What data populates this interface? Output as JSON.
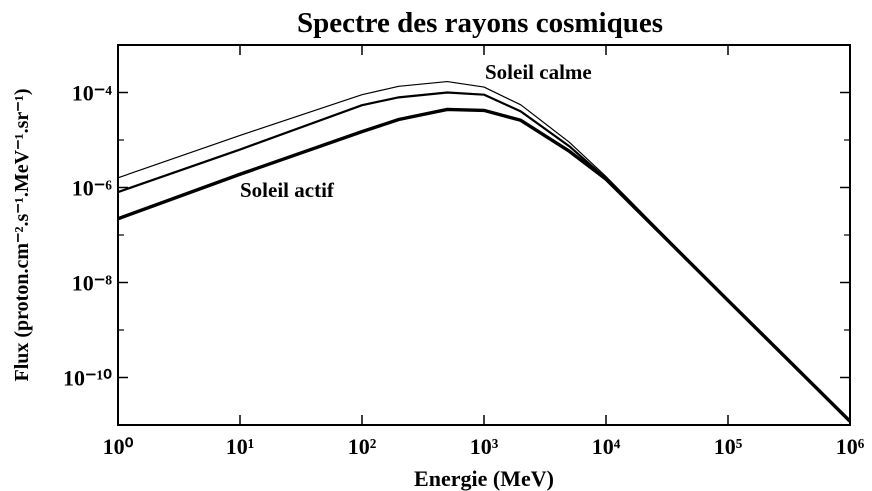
{
  "chart_data": {
    "type": "line",
    "title": "Spectre des rayons cosmiques",
    "x_label": "Energie (MeV)",
    "y_label": "Flux (proton.cm⁻².s⁻¹.MeV⁻¹.sr⁻¹)",
    "log_x": true,
    "log_y": true,
    "x": [
      1,
      10,
      100,
      200,
      500,
      1000,
      2000,
      5000,
      10000,
      100000,
      1000000
    ],
    "series": [
      {
        "color": "#000000",
        "width": 1.2,
        "values": [
          1.6e-06,
          1.25e-05,
          9e-05,
          0.000135,
          0.00017,
          0.00013,
          5.5e-05,
          9e-06,
          1.7e-06,
          4.3e-09,
          1.2e-11
        ]
      },
      {
        "color": "#000000",
        "width": 2.2,
        "values": [
          8e-07,
          6.3e-06,
          5.4e-05,
          7.9e-05,
          0.0001,
          9e-05,
          4e-05,
          7.4e-06,
          1.55e-06,
          4.2e-09,
          1.2e-11
        ]
      },
      {
        "color": "#000000",
        "width": 3.4,
        "values": [
          2.2e-07,
          1.9e-06,
          1.5e-05,
          2.7e-05,
          4.4e-05,
          4.2e-05,
          2.6e-05,
          5.8e-06,
          1.5e-06,
          4.2e-09,
          1.2e-11
        ]
      }
    ],
    "annotations": [
      "Soleil calme",
      "Soleil actif"
    ],
    "xlim": [
      1,
      1000000
    ],
    "ylim": [
      1e-11,
      0.001
    ],
    "xticks": [
      {
        "value": 1,
        "label": "10⁰"
      },
      {
        "value": 10,
        "label": "10¹"
      },
      {
        "value": 100,
        "label": "10²"
      },
      {
        "value": 1000,
        "label": "10³"
      },
      {
        "value": 10000,
        "label": "10⁴"
      },
      {
        "value": 100000,
        "label": "10⁵"
      },
      {
        "value": 1000000,
        "label": "10⁶"
      }
    ],
    "yticks": [
      {
        "value": 1e-10,
        "label": "10⁻¹⁰"
      },
      {
        "value": 1e-08,
        "label": "10⁻⁸"
      },
      {
        "value": 1e-06,
        "label": "10⁻⁶"
      },
      {
        "value": 0.0001,
        "label": "10⁻⁴"
      }
    ],
    "yminorticks": [
      1e-11,
      1e-09,
      1e-07,
      1e-05,
      0.001
    ],
    "grid": false
  }
}
